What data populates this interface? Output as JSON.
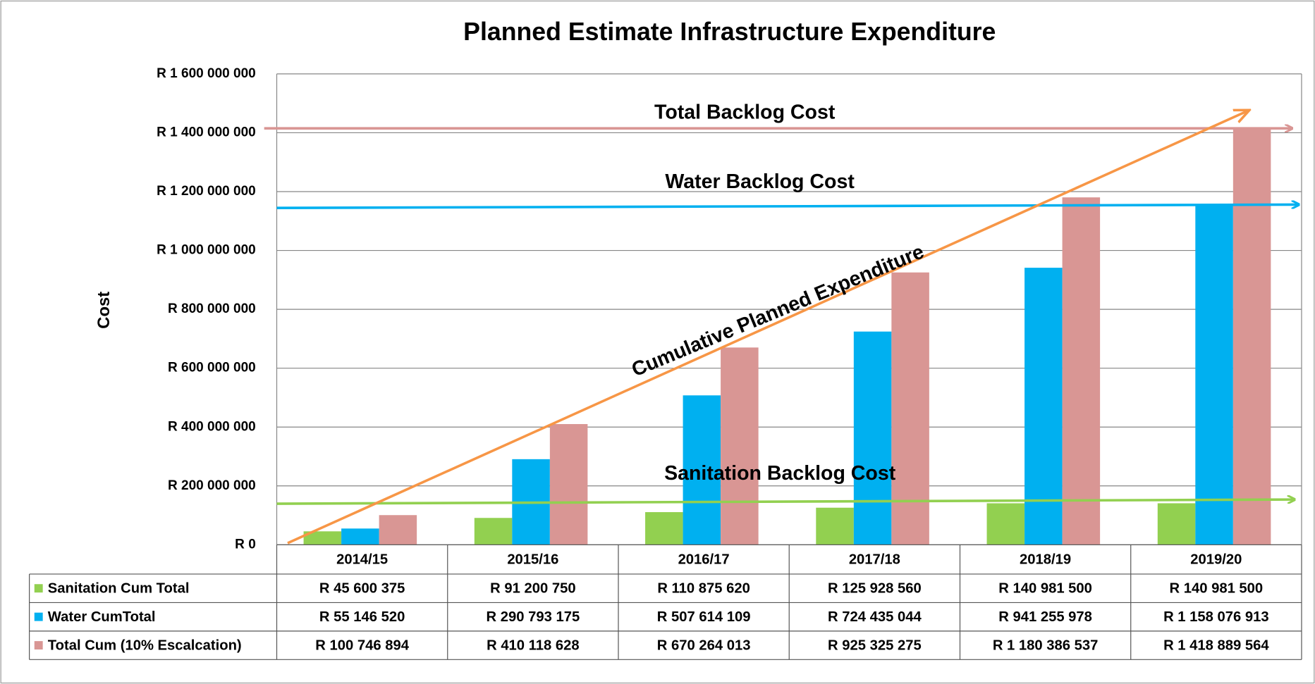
{
  "chart_data": {
    "type": "bar",
    "title": "Planned Estimate Infrastructure Expenditure",
    "y_label": "Cost",
    "categories": [
      "2014/15",
      "2015/16",
      "2016/17",
      "2017/18",
      "2018/19",
      "2019/20"
    ],
    "series": [
      {
        "name": "Sanitation Cum Total",
        "color": "#92d050",
        "values": [
          45600375,
          91200750,
          110875620,
          125928560,
          140981500,
          140981500
        ],
        "value_labels": [
          "R 45 600 375",
          "R 91 200 750",
          "R 110 875 620",
          "R 125 928 560",
          "R 140 981 500",
          "R 140 981 500"
        ]
      },
      {
        "name": "Water CumTotal",
        "color": "#00b0f0",
        "values": [
          55146520,
          290793175,
          507614109,
          724435044,
          941255978,
          1158076913
        ],
        "value_labels": [
          "R 55 146 520",
          "R 290 793 175",
          "R 507 614 109",
          "R 724 435 044",
          "R 941 255 978",
          "R 1 158 076 913"
        ]
      },
      {
        "name": "Total Cum (10% Escalcation)",
        "color": "#d99694",
        "values": [
          100746894,
          410118628,
          670264013,
          925325275,
          1180386537,
          1418889564
        ],
        "value_labels": [
          "R 100 746 894",
          "R 410 118 628",
          "R 670 264 013",
          "R 925 325 275",
          "R 1 180 386 537",
          "R 1 418 889 564"
        ]
      }
    ],
    "ylim": [
      0,
      1600000000
    ],
    "yticks": [
      {
        "value": 0,
        "label": "R 0"
      },
      {
        "value": 200000000,
        "label": "R 200 000 000"
      },
      {
        "value": 400000000,
        "label": "R 400 000 000"
      },
      {
        "value": 600000000,
        "label": "R 600 000 000"
      },
      {
        "value": 800000000,
        "label": "R 800 000 000"
      },
      {
        "value": 1000000000,
        "label": "R 1 000 000 000"
      },
      {
        "value": 1200000000,
        "label": "R 1 200 000 000"
      },
      {
        "value": 1400000000,
        "label": "R 1 400 000 000"
      },
      {
        "value": 1600000000,
        "label": "R 1 600 000 000"
      }
    ],
    "grid": true,
    "annotations": [
      "Total Backlog Cost",
      "Water Backlog Cost",
      "Sanitation Backlog Cost",
      "Cumulative Planned Expenditure"
    ]
  }
}
